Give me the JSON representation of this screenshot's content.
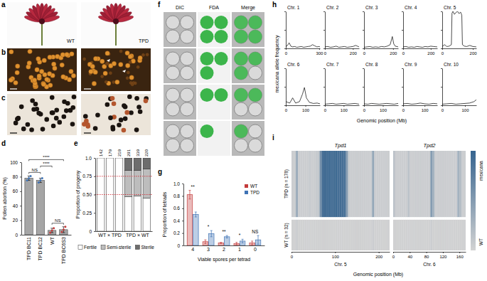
{
  "figure": {
    "panel_labels": [
      "a",
      "b",
      "c",
      "d",
      "e",
      "f",
      "g",
      "h",
      "i"
    ],
    "a_labels": [
      "WT",
      "TPD"
    ],
    "f_columns": [
      "DIC",
      "FDA",
      "Merge"
    ],
    "f_viable": [
      4,
      3,
      2,
      1
    ]
  },
  "chart_data": [
    {
      "type": "bar",
      "ylabel": "Pollen abortion (%)",
      "categories": [
        "TPD BC11",
        "TPD BC12",
        "WT",
        "TPD BC6S3"
      ],
      "values": [
        78,
        75,
        6,
        7
      ],
      "errors": [
        3,
        3,
        3,
        4
      ],
      "points": [
        [
          75,
          78,
          81
        ],
        [
          72,
          75,
          78
        ],
        [
          3,
          6,
          9
        ],
        [
          4,
          7,
          11
        ]
      ],
      "colors": [
        "#3f73b5",
        "#3f73b5",
        "#c43b3b",
        "#c43b3b"
      ],
      "ylim": [
        0,
        100
      ],
      "yticks": [
        0,
        20,
        40,
        60,
        80,
        100
      ],
      "annotations": [
        {
          "between": [
            "TPD BC11",
            "TPD BC12"
          ],
          "text": "NS"
        },
        {
          "between": [
            "TPD BC12",
            "WT"
          ],
          "text": "****"
        },
        {
          "between": [
            "TPD BC11",
            "TPD BC6S3"
          ],
          "text": "****"
        },
        {
          "between": [
            "WT",
            "TPD BC6S3"
          ],
          "text": "NS"
        }
      ]
    },
    {
      "type": "bar",
      "stacked": true,
      "ylabel": "Proportion of progeny",
      "categories": [
        null,
        "WT × TPD",
        null,
        null,
        "TPD × WT",
        null
      ],
      "n": [
        142,
        179,
        219,
        291,
        339,
        220
      ],
      "series": [
        {
          "name": "Fertile",
          "color": "#ffffff",
          "values": [
            1,
            1,
            1,
            0.47,
            0.48,
            0.45
          ]
        },
        {
          "name": "Semi-sterile",
          "color": "#bdbdbd",
          "values": [
            0,
            0,
            0,
            0.36,
            0.35,
            0.4
          ]
        },
        {
          "name": "Sterile",
          "color": "#6d6d6d",
          "values": [
            0,
            0,
            0,
            0.17,
            0.17,
            0.15
          ]
        }
      ],
      "ylim": [
        0,
        1
      ],
      "yticks": [
        0,
        0.25,
        {
          "value": 0.5,
          "label": "0.50"
        },
        0.75,
        {
          "value": 1,
          "label": "1.0"
        }
      ],
      "reference_lines": [
        0.5,
        0.75
      ],
      "legend": "bottom"
    },
    {
      "type": "bar",
      "xlabel": "Viable spores per tetrad",
      "ylabel": "Proportion of tetrads",
      "categories": [
        "4",
        "3",
        "2",
        "1",
        "0"
      ],
      "series": [
        {
          "name": "WT",
          "color": "#c43b3b",
          "values": [
            0.82,
            0.06,
            0.04,
            0.03,
            0.04
          ],
          "errors": [
            0.07,
            0.03,
            0.01,
            0.02,
            0.03
          ]
        },
        {
          "name": "TPD",
          "color": "#3f73b5",
          "values": [
            0.5,
            0.19,
            0.14,
            0.07,
            0.09
          ],
          "errors": [
            0.04,
            0.05,
            0.02,
            0.03,
            0.07
          ]
        }
      ],
      "ylim": [
        0,
        1
      ],
      "yticks": [
        0,
        0.2,
        0.4,
        0.6,
        0.8,
        {
          "value": 1,
          "label": "1.0"
        }
      ],
      "annotations": [
        "**",
        "*",
        "**",
        "*",
        "NS"
      ],
      "legend": "top-right"
    },
    {
      "type": "line",
      "xlabel": "Genomic position (Mb)",
      "ylabel": "mexicana allele frequency",
      "color": "#000000",
      "ylim": [
        0,
        1
      ],
      "yticks": [
        0,
        0.5,
        1
      ],
      "tick_labels": "x",
      "panels": [
        {
          "title": "Chr. 1",
          "xlim": [
            0,
            307
          ],
          "xticks": [
            0,
            300
          ],
          "x": [
            0,
            15,
            30,
            45,
            60,
            80,
            100,
            120,
            140,
            160,
            180,
            200,
            220,
            240,
            260,
            280,
            300,
            307
          ],
          "values": [
            0.05,
            0.08,
            0.15,
            0.06,
            0.04,
            0.05,
            0.03,
            0.04,
            0.05,
            0.03,
            0.04,
            0.05,
            0.06,
            0.1,
            0.07,
            0.04,
            0.05,
            0.04
          ]
        },
        {
          "title": "Chr. 2",
          "xlim": [
            0,
            244
          ],
          "xticks": [
            0,
            200
          ],
          "x": [
            0,
            20,
            40,
            60,
            80,
            100,
            120,
            140,
            160,
            180,
            200,
            220,
            244
          ],
          "values": [
            0.04,
            0.05,
            0.03,
            0.04,
            0.06,
            0.03,
            0.04,
            0.05,
            0.03,
            0.04,
            0.05,
            0.08,
            0.04
          ]
        },
        {
          "title": "Chr. 3",
          "xlim": [
            0,
            235
          ],
          "xticks": [
            0,
            200
          ],
          "x": [
            0,
            20,
            40,
            60,
            80,
            100,
            120,
            140,
            160,
            180,
            195,
            205,
            215,
            235
          ],
          "values": [
            0.03,
            0.04,
            0.05,
            0.03,
            0.04,
            0.03,
            0.05,
            0.04,
            0.06,
            0.1,
            0.32,
            0.12,
            0.06,
            0.04
          ]
        },
        {
          "title": "Chr. 4",
          "xlim": [
            0,
            247
          ],
          "xticks": [
            0,
            200
          ],
          "x": [
            0,
            20,
            40,
            60,
            80,
            100,
            120,
            140,
            160,
            180,
            200,
            220,
            247
          ],
          "values": [
            0.04,
            0.05,
            0.03,
            0.04,
            0.03,
            0.05,
            0.04,
            0.03,
            0.05,
            0.04,
            0.06,
            0.05,
            0.04
          ]
        },
        {
          "title": "Chr. 5",
          "xlim": [
            0,
            223
          ],
          "xticks": [
            0,
            200
          ],
          "x": [
            0,
            15,
            30,
            45,
            60,
            64,
            70,
            80,
            90,
            100,
            110,
            120,
            128,
            132,
            145,
            160,
            180,
            200,
            223
          ],
          "values": [
            0.05,
            0.1,
            0.05,
            0.06,
            0.1,
            0.95,
            1,
            0.92,
            0.97,
            1,
            0.94,
            0.98,
            0.9,
            0.1,
            0.06,
            0.05,
            0.08,
            0.05,
            0.04
          ]
        },
        {
          "title": "Chr. 6",
          "xlim": [
            0,
            174
          ],
          "xticks": [
            0,
            100
          ],
          "x": [
            0,
            20,
            35,
            50,
            70,
            85,
            95,
            105,
            120,
            140,
            160,
            174
          ],
          "values": [
            0.1,
            0.06,
            0.2,
            0.06,
            0.1,
            0.3,
            0.48,
            0.2,
            0.08,
            0.05,
            0.06,
            0.04
          ]
        },
        {
          "title": "Chr. 7",
          "xlim": [
            0,
            182
          ],
          "xticks": [
            0,
            100
          ],
          "x": [
            0,
            20,
            40,
            60,
            80,
            100,
            120,
            140,
            160,
            182
          ],
          "values": [
            0.03,
            0.04,
            0.05,
            0.03,
            0.04,
            0.05,
            0.03,
            0.04,
            0.05,
            0.03
          ]
        },
        {
          "title": "Chr. 8",
          "xlim": [
            0,
            181
          ],
          "xticks": [
            0,
            100
          ],
          "x": [
            0,
            20,
            40,
            60,
            80,
            100,
            120,
            140,
            160,
            181
          ],
          "values": [
            0.04,
            0.03,
            0.05,
            0.04,
            0.03,
            0.04,
            0.05,
            0.04,
            0.03,
            0.05
          ]
        },
        {
          "title": "Chr. 9",
          "xlim": [
            0,
            159
          ],
          "xticks": [
            0,
            100
          ],
          "x": [
            0,
            20,
            40,
            60,
            80,
            100,
            120,
            140,
            159
          ],
          "values": [
            0.04,
            0.05,
            0.03,
            0.04,
            0.06,
            0.04,
            0.03,
            0.05,
            0.04
          ]
        },
        {
          "title": "Chr. 10",
          "xlim": [
            0,
            150
          ],
          "xticks": [
            0,
            100
          ],
          "x": [
            0,
            20,
            40,
            60,
            80,
            100,
            120,
            140,
            150
          ],
          "values": [
            0.03,
            0.04,
            0.05,
            0.03,
            0.04,
            0.05,
            0.06,
            0.1,
            0.15
          ]
        }
      ]
    },
    {
      "type": "heatmap",
      "xlabel": "Genomic position (Mb)",
      "rows": [
        "TPD (n = 178)",
        "WT (n = 32)"
      ],
      "colorbar": {
        "labels": [
          "mexicana",
          "WT"
        ],
        "colors": [
          "#36648f",
          "#d3d3d3"
        ],
        "range": [
          0,
          1
        ]
      },
      "panels": [
        {
          "title": "Tpd1",
          "xlabel": "Chr. 5",
          "xlim": [
            0,
            225
          ],
          "xticks": [
            0,
            100,
            200
          ],
          "bins": [
            0,
            5,
            10,
            15,
            20,
            25,
            30,
            35,
            40,
            45,
            50,
            55,
            60,
            65,
            70,
            75,
            80,
            85,
            90,
            95,
            100,
            105,
            110,
            115,
            120,
            125,
            130,
            135,
            140,
            145,
            150,
            155,
            160,
            165,
            170,
            175,
            180,
            185,
            190,
            195,
            200,
            205,
            210,
            215,
            220,
            225
          ],
          "cells": [
            [
              0.05,
              0.05,
              0.35,
              0.05,
              0.05,
              0.05,
              0.05,
              0.05,
              0.08,
              0.05,
              0.05,
              0.08,
              0.1,
              0.6,
              0.9,
              0.92,
              0.9,
              0.93,
              0.9,
              0.92,
              0.95,
              0.9,
              0.92,
              0.9,
              0.88,
              0.5,
              0.08,
              0.05,
              0.05,
              0.05,
              0.05,
              0.05,
              0.05,
              0.05,
              0.05,
              0.05,
              0.05,
              0.4,
              0.05,
              0.05,
              0.05,
              0.05,
              0.05,
              0.05,
              0.05
            ],
            [
              0.02,
              0.02,
              0.05,
              0.02,
              0.02,
              0.02,
              0.02,
              0.02,
              0.02,
              0.02,
              0.02,
              0.02,
              0.02,
              0.02,
              0.02,
              0.02,
              0.02,
              0.02,
              0.02,
              0.02,
              0.02,
              0.02,
              0.02,
              0.02,
              0.02,
              0.02,
              0.02,
              0.02,
              0.02,
              0.02,
              0.02,
              0.02,
              0.02,
              0.02,
              0.02,
              0.02,
              0.02,
              0.05,
              0.02,
              0.02,
              0.02,
              0.02,
              0.02,
              0.02,
              0.02
            ]
          ]
        },
        {
          "title": "Tpd2",
          "xlabel": "Chr. 6",
          "xlim": [
            0,
            175
          ],
          "xticks": [
            0,
            40,
            80,
            120,
            160
          ],
          "bins": [
            0,
            5,
            10,
            15,
            20,
            25,
            30,
            35,
            40,
            45,
            50,
            55,
            60,
            65,
            70,
            75,
            80,
            85,
            90,
            95,
            100,
            105,
            110,
            115,
            120,
            125,
            130,
            135,
            140,
            145,
            150,
            155,
            160,
            165,
            170,
            175
          ],
          "cells": [
            [
              0.15,
              0.05,
              0.05,
              0.05,
              0.05,
              0.05,
              0.05,
              0.15,
              0.05,
              0.05,
              0.05,
              0.05,
              0.05,
              0.05,
              0.05,
              0.05,
              0.05,
              0.05,
              0.5,
              0.3,
              0.05,
              0.05,
              0.05,
              0.05,
              0.05,
              0.05,
              0.05,
              0.05,
              0.05,
              0.05,
              0.05,
              0.3,
              0.2,
              0.05,
              0.05
            ],
            [
              0.02,
              0.02,
              0.02,
              0.02,
              0.02,
              0.02,
              0.02,
              0.02,
              0.02,
              0.02,
              0.02,
              0.02,
              0.02,
              0.02,
              0.02,
              0.02,
              0.02,
              0.02,
              0.05,
              0.02,
              0.02,
              0.02,
              0.02,
              0.02,
              0.02,
              0.02,
              0.02,
              0.02,
              0.02,
              0.02,
              0.02,
              0.02,
              0.02,
              0.02,
              0.02
            ]
          ]
        }
      ]
    }
  ]
}
